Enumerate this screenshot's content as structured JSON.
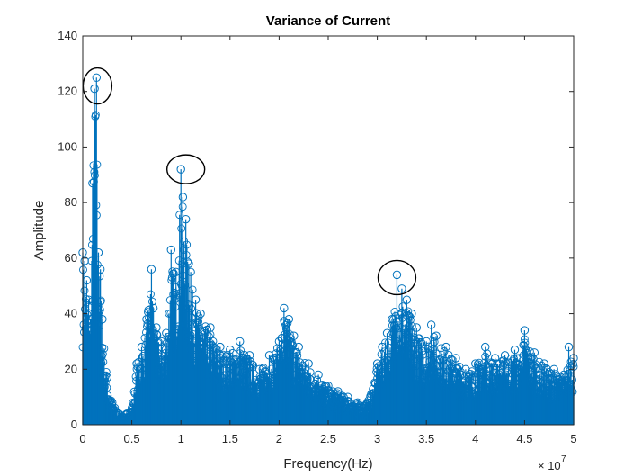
{
  "chart_data": {
    "type": "stem",
    "title": "Variance of Current",
    "xlabel": "Frequency(Hz)",
    "ylabel": "Amplitude",
    "x_exponent_base": "× 10",
    "x_exponent_power": "7",
    "xlim": [
      0,
      5
    ],
    "ylim": [
      0,
      140
    ],
    "xticks": [
      0,
      0.5,
      1,
      1.5,
      2,
      2.5,
      3,
      3.5,
      4,
      4.5,
      5
    ],
    "xtick_labels": [
      "0",
      "0.5",
      "1",
      "1.5",
      "2",
      "2.5",
      "3",
      "3.5",
      "4",
      "4.5",
      "5"
    ],
    "yticks": [
      0,
      20,
      40,
      60,
      80,
      100,
      120,
      140
    ],
    "ytick_labels": [
      "0",
      "20",
      "40",
      "60",
      "80",
      "100",
      "120",
      "140"
    ],
    "grid": false,
    "series_color": "#0072BD",
    "series": [
      {
        "x": [
          0.0,
          0.02,
          0.04,
          0.06,
          0.08,
          0.1,
          0.12,
          0.14,
          0.16,
          0.18,
          0.2,
          0.25,
          0.3,
          0.4,
          0.5,
          0.55,
          0.6,
          0.65,
          0.7,
          0.72,
          0.75,
          0.8,
          0.85,
          0.9,
          0.95,
          1.0,
          1.02,
          1.05,
          1.08,
          1.1,
          1.15,
          1.2,
          1.3,
          1.4,
          1.5,
          1.6,
          1.7,
          1.8,
          1.9,
          2.0,
          2.05,
          2.1,
          2.15,
          2.2,
          2.3,
          2.4,
          2.5,
          2.6,
          2.7,
          2.8,
          2.9,
          3.0,
          3.05,
          3.1,
          3.15,
          3.2,
          3.25,
          3.3,
          3.35,
          3.4,
          3.5,
          3.55,
          3.6,
          3.7,
          3.8,
          3.9,
          4.0,
          4.1,
          4.2,
          4.3,
          4.4,
          4.45,
          4.5,
          4.6,
          4.7,
          4.8,
          4.9,
          4.95,
          5.0
        ],
        "y": [
          62,
          59,
          52,
          45,
          38,
          87,
          121,
          125,
          62,
          56,
          38,
          17,
          8,
          3,
          6,
          22,
          28,
          38,
          56,
          42,
          35,
          30,
          33,
          63,
          55,
          92,
          82,
          74,
          58,
          55,
          45,
          40,
          35,
          28,
          27,
          30,
          25,
          20,
          25,
          30,
          42,
          38,
          32,
          28,
          22,
          18,
          14,
          12,
          10,
          8,
          8,
          22,
          28,
          33,
          38,
          54,
          49,
          45,
          40,
          35,
          30,
          36,
          32,
          28,
          24,
          20,
          22,
          28,
          24,
          25,
          27,
          24,
          34,
          26,
          22,
          20,
          18,
          28,
          24
        ]
      }
    ],
    "annotations": [
      "circle around peak near x=0.15",
      "circle around peak near x=1.05",
      "circle around peak near x=3.2"
    ]
  }
}
